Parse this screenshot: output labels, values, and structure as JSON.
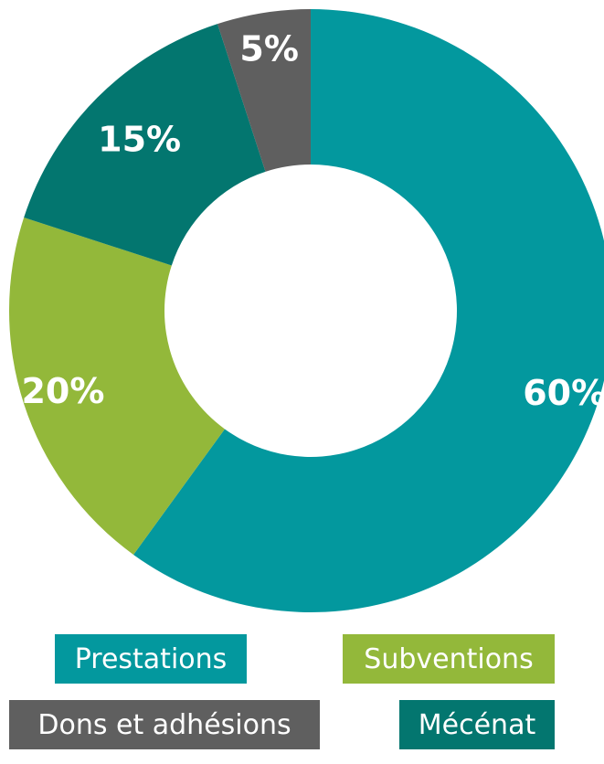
{
  "chart_data": {
    "type": "pie",
    "title": "",
    "slices": [
      {
        "label": "Prestations",
        "value": 60,
        "display": "60%",
        "color": "#03989e"
      },
      {
        "label": "Subventions",
        "value": 20,
        "display": "20%",
        "color": "#93b83a"
      },
      {
        "label": "Mécénat",
        "value": 15,
        "display": "15%",
        "color": "#03766f"
      },
      {
        "label": "Dons et adhésions",
        "value": 5,
        "display": "5%",
        "color": "#5f5f5f"
      }
    ],
    "legend": {
      "items": [
        {
          "label": "Prestations",
          "color": "#03989e"
        },
        {
          "label": "Subventions",
          "color": "#93b83a"
        },
        {
          "label": "Dons et adhésions",
          "color": "#5f5f5f"
        },
        {
          "label": "Mécénat",
          "color": "#03766f"
        }
      ]
    }
  }
}
